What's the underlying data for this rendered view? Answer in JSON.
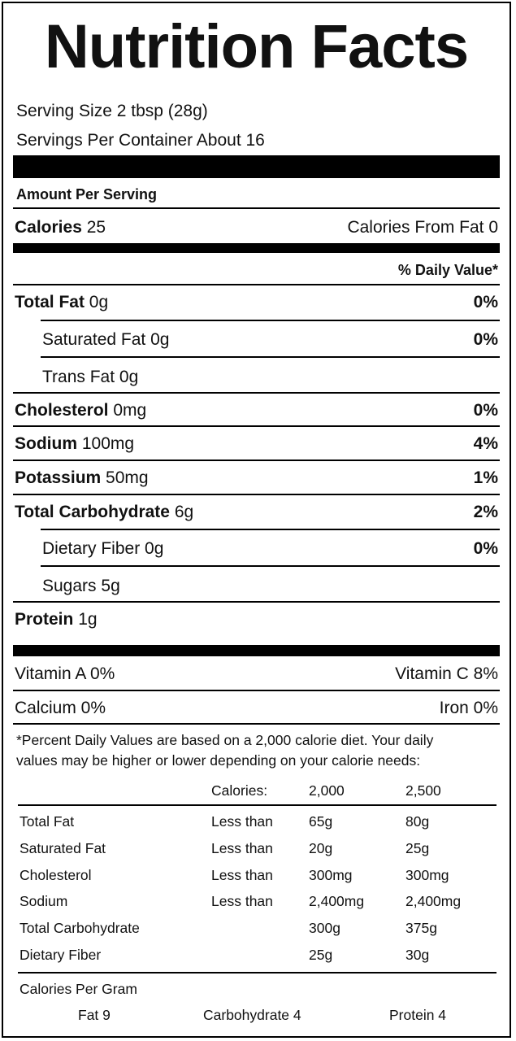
{
  "title": "Nutrition Facts",
  "serving_size": "Serving Size  2 tbsp (28g)",
  "servings_per_container": "Servings Per Container About 16",
  "amount_per_serving": "Amount Per Serving",
  "calories": {
    "label": "Calories",
    "value": "25"
  },
  "calories_from_fat": "Calories From Fat 0",
  "daily_value_header": "% Daily Value*",
  "nutrients": [
    {
      "label": "Total Fat",
      "amount": "0g",
      "dv": "0%"
    },
    {
      "label": "Saturated Fat",
      "amount": "0g",
      "dv": "0%"
    },
    {
      "label": "Trans Fat",
      "amount": "0g",
      "dv": ""
    },
    {
      "label": "Cholesterol",
      "amount": "0mg",
      "dv": "0%"
    },
    {
      "label": "Sodium",
      "amount": "100mg",
      "dv": "4%"
    },
    {
      "label": "Potassium",
      "amount": "50mg",
      "dv": "1%"
    },
    {
      "label": "Total Carbohydrate",
      "amount": "6g",
      "dv": "2%"
    },
    {
      "label": "Dietary Fiber",
      "amount": "0g",
      "dv": "0%"
    },
    {
      "label": "Sugars",
      "amount": "5g",
      "dv": ""
    },
    {
      "label": "Protein",
      "amount": "1g",
      "dv": ""
    }
  ],
  "vitamins": {
    "vitamin_a": "Vitamin A 0%",
    "vitamin_c": "Vitamin C 8%",
    "calcium": "Calcium 0%",
    "iron": "Iron 0%"
  },
  "footnote": {
    "line1": "*Percent Daily Values are based on a 2,000 calorie diet. Your daily",
    "line2": "values may be higher or lower depending on your calorie needs:"
  },
  "dv_table": {
    "header": [
      "",
      "Calories:",
      "2,000",
      "2,500"
    ],
    "rows": [
      [
        "Total Fat",
        "Less than",
        "65g",
        "80g"
      ],
      [
        "Saturated Fat",
        "Less than",
        "20g",
        "25g"
      ],
      [
        "Cholesterol",
        "Less than",
        "300mg",
        "300mg"
      ],
      [
        "Sodium",
        "Less than",
        "2,400mg",
        "2,400mg"
      ],
      [
        "Total Carbohydrate",
        "",
        "300g",
        "375g"
      ],
      [
        "Dietary Fiber",
        "",
        "25g",
        "30g"
      ]
    ]
  },
  "calories_per_gram": {
    "label": "Calories Per Gram",
    "fat": "Fat 9",
    "carbohydrate": "Carbohydrate 4",
    "protein": "Protein 4"
  }
}
